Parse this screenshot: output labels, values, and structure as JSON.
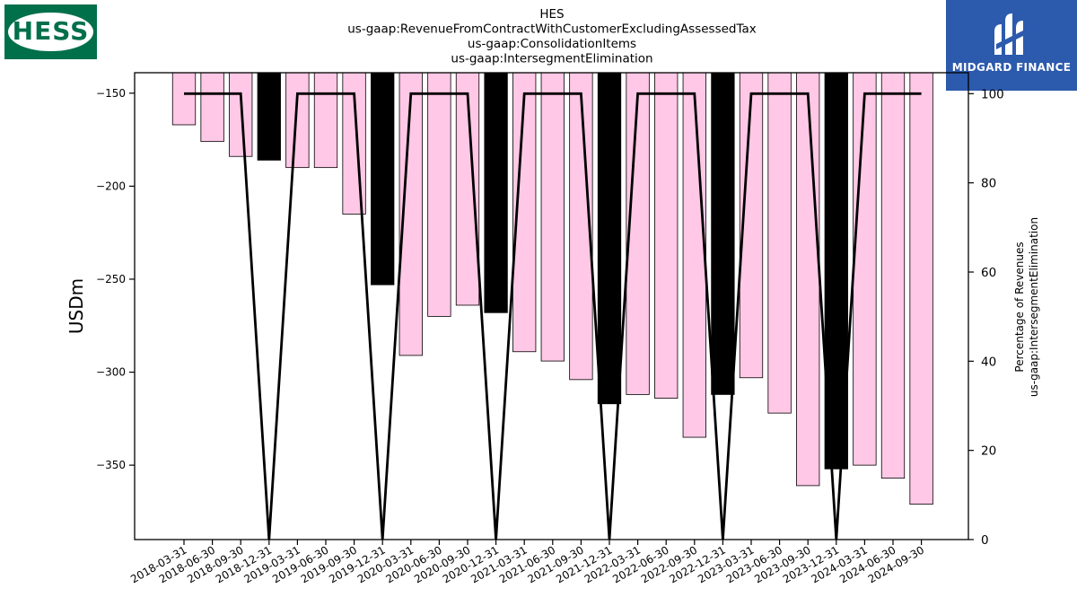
{
  "logos": {
    "left": "HESS",
    "right": "MIDGARD FINANCE"
  },
  "colors": {
    "bar_regular": "#ffc8e6",
    "bar_highlight": "#000000",
    "line": "#000000"
  },
  "chart_data": {
    "type": "bar",
    "title_lines": [
      "HES",
      "us-gaap:RevenueFromContractWithCustomerExcludingAssessedTax",
      "us-gaap:ConsolidationItems",
      "us-gaap:IntersegmentElimination"
    ],
    "ylabel": "USDm",
    "y2label_lines": [
      "Percentage of Revenues",
      "us-gaap:IntersegmentElimination"
    ],
    "ylim": [
      -390,
      -139
    ],
    "y2lim": [
      0,
      104.7
    ],
    "yticks": [
      -150,
      -200,
      -250,
      -300,
      -350
    ],
    "y2ticks": [
      0,
      20,
      40,
      60,
      80,
      100
    ],
    "categories": [
      "2018-03-31",
      "2018-06-30",
      "2018-09-30",
      "2018-12-31",
      "2019-03-31",
      "2019-06-30",
      "2019-09-30",
      "2019-12-31",
      "2020-03-31",
      "2020-06-30",
      "2020-09-30",
      "2020-12-31",
      "2021-03-31",
      "2021-06-30",
      "2021-09-30",
      "2021-12-31",
      "2022-03-31",
      "2022-06-30",
      "2022-09-30",
      "2022-12-31",
      "2023-03-31",
      "2023-06-30",
      "2023-09-30",
      "2023-12-31",
      "2024-03-31",
      "2024-06-30",
      "2024-09-30"
    ],
    "series": [
      {
        "type": "bar",
        "values": [
          -167,
          -176,
          -184,
          -186,
          -190,
          -190,
          -215,
          -253,
          -291,
          -270,
          -264,
          -268,
          -289,
          -294,
          -304,
          -317,
          -312,
          -314,
          -335,
          -312,
          -303,
          -322,
          -361,
          -352,
          -350,
          -357,
          -371
        ]
      },
      {
        "type": "line",
        "axis": "right",
        "values": [
          100,
          100,
          100,
          0,
          100,
          100,
          100,
          0,
          100,
          100,
          100,
          0,
          100,
          100,
          100,
          0,
          100,
          100,
          100,
          0,
          100,
          100,
          100,
          0,
          100,
          100,
          100
        ]
      }
    ],
    "highlighted_categories": [
      "2018-12-31",
      "2019-12-31",
      "2020-12-31",
      "2021-12-31",
      "2022-12-31",
      "2023-12-31"
    ],
    "grid": false,
    "legend": "none"
  }
}
